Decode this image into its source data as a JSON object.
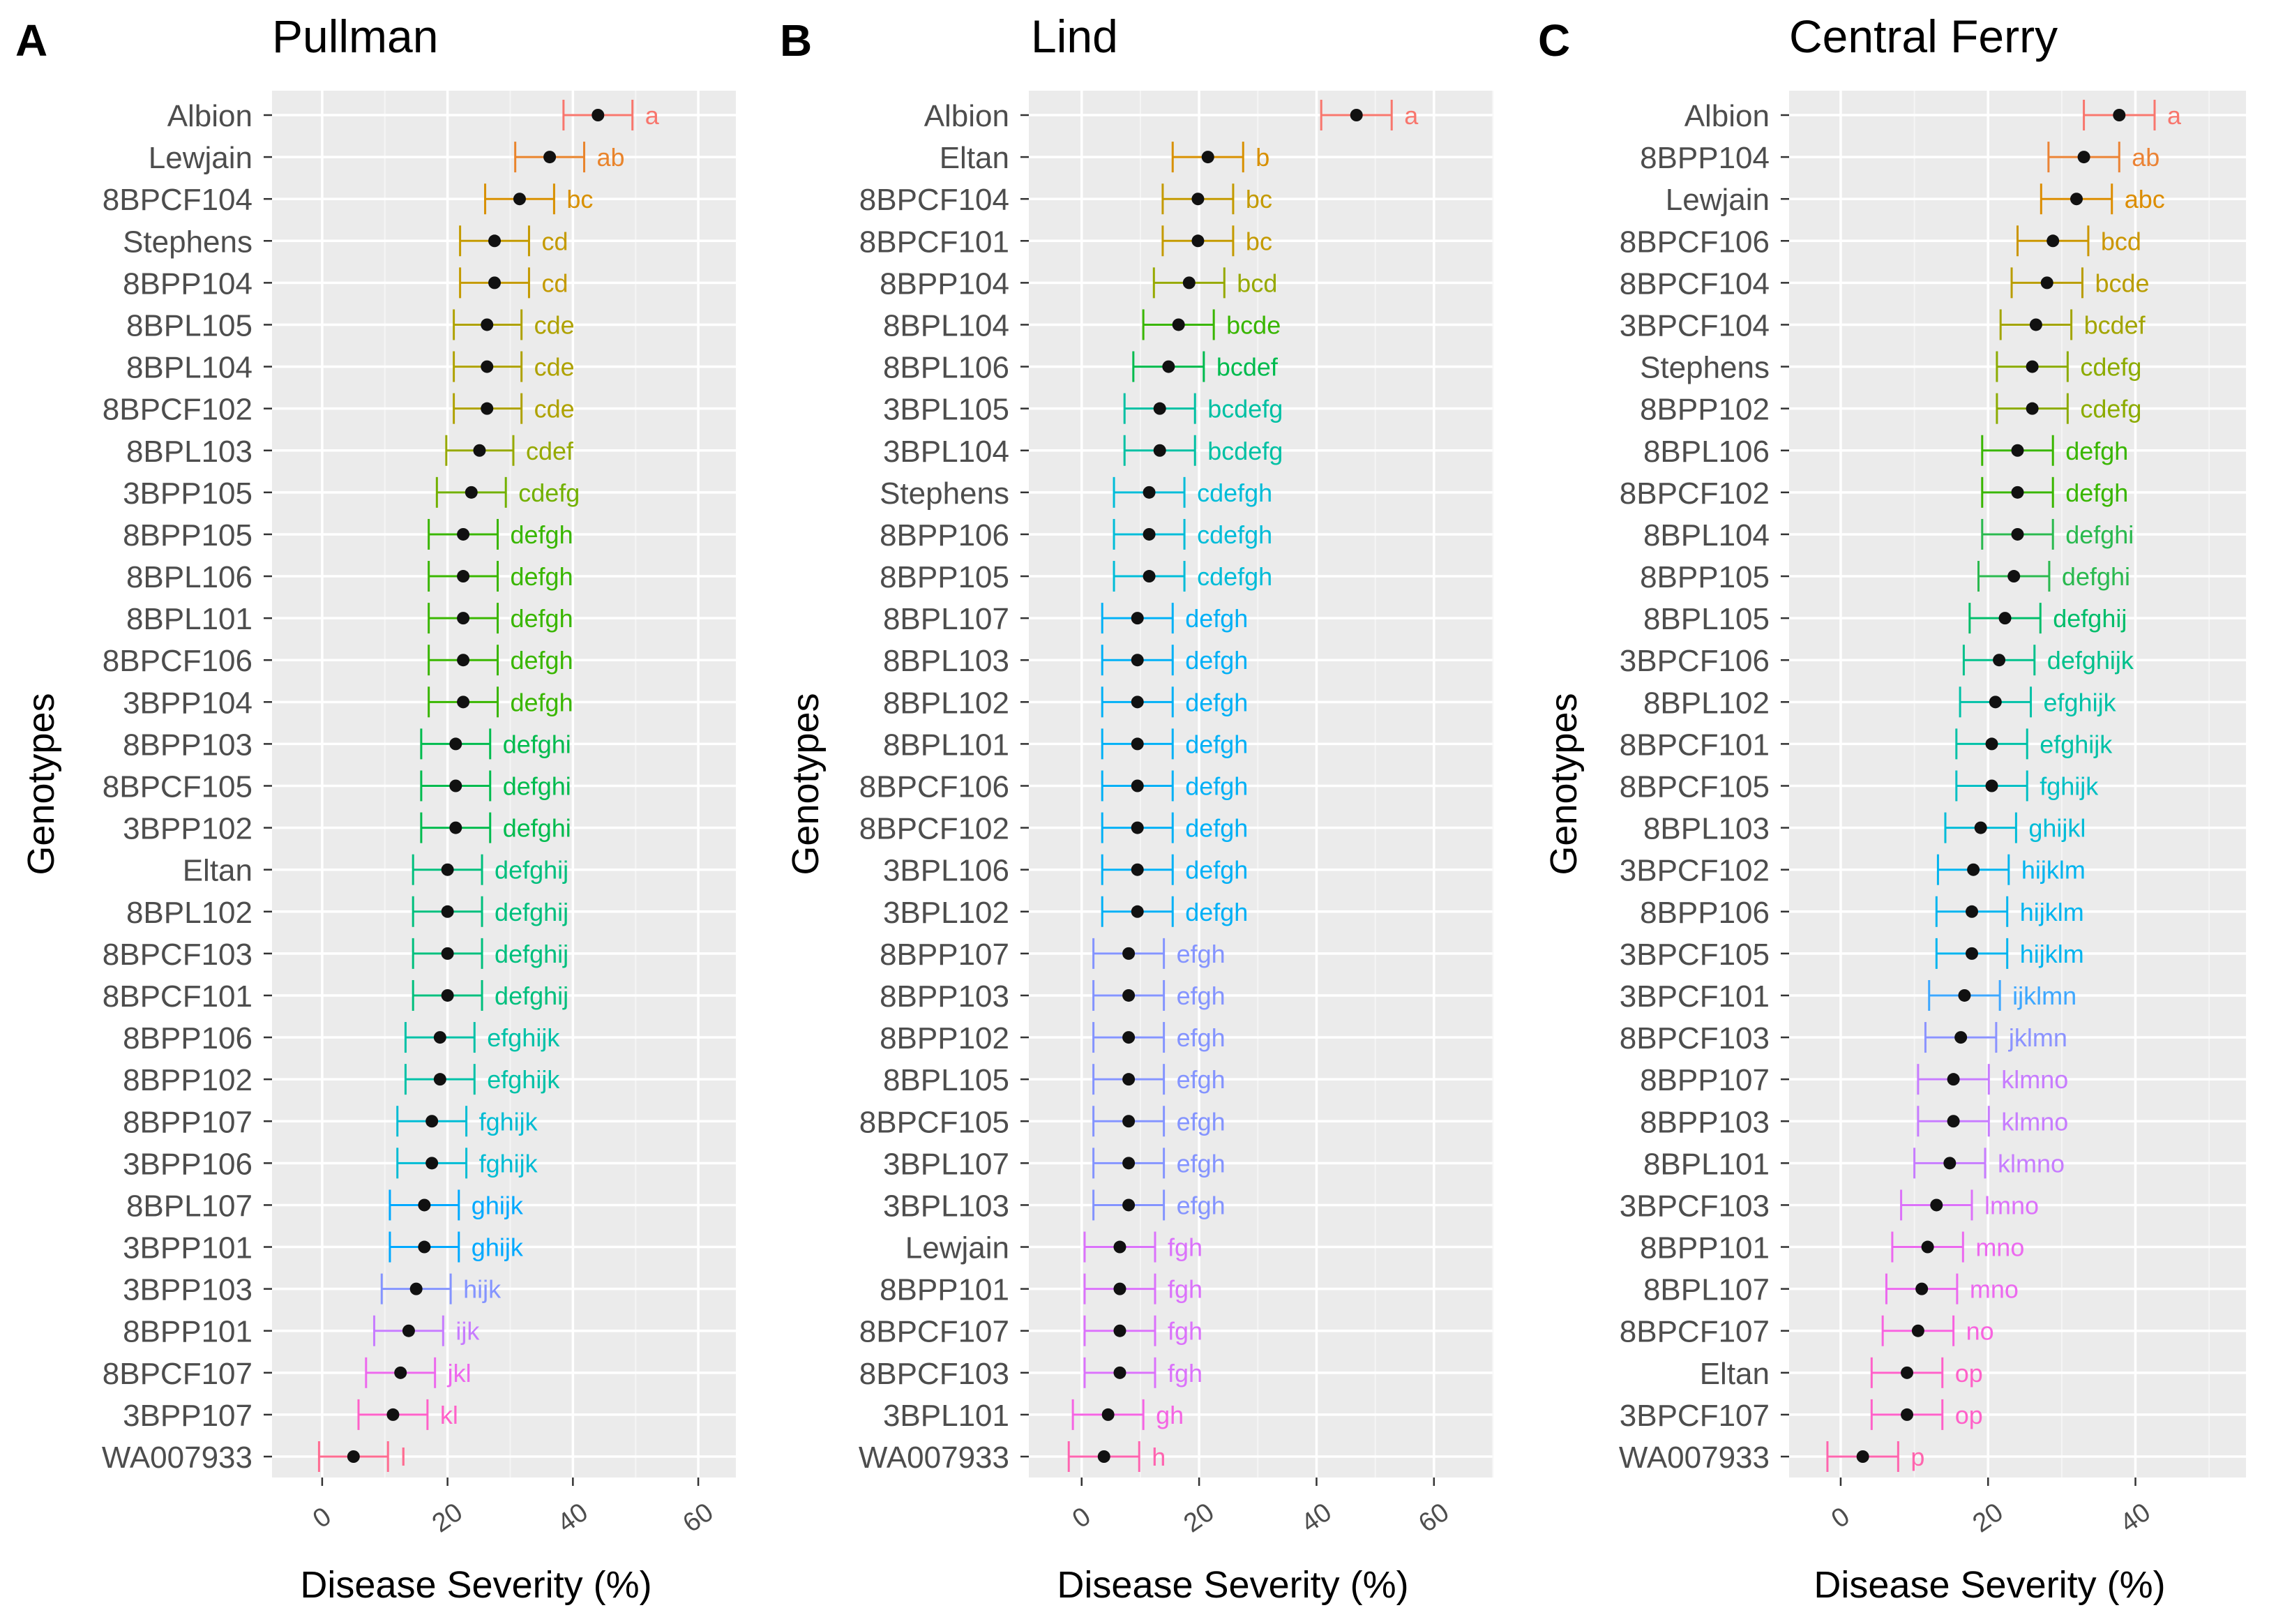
{
  "colors": {
    "a": "#F8766D",
    "ab": "#EE8133",
    "b": "#E58700",
    "bc": "#D89000",
    "abc": "#D39200",
    "bcd": "#BE9B00",
    "bcde": "#A6A300",
    "cd": "#B8A000",
    "cde": "#A3A500",
    "cdef": "#8CAB00",
    "bcdef": "#7CAE00",
    "cdefg": "#5BB300",
    "bcdefg": "#3BB800",
    "defgh": "#39B600",
    "defghi": "#2AB94F",
    "defghij": "#00BF7D",
    "defghijk": "#00C08B",
    "cdefgh": "#00BFC4",
    "defgh_lind": "#00B5E0",
    "efghi": "#00C1A3",
    "efghijk": "#00C0AF",
    "fghijk": "#00BCD8",
    "ghijk": "#35A2FF",
    "ghijkl": "#00BBDB",
    "hijk": "#9590FF",
    "hijklm": "#00B0F6",
    "ijklmn": "#25A8FF",
    "jklmn": "#6E9CFF",
    "klmno": "#C77CFF",
    "lmno": "#D773F5",
    "mno": "#E76BF3",
    "no": "#F265D6",
    "op": "#F563C7",
    "p": "#FF61C3",
    "ijk": "#B983FF",
    "jkl": "#E76BF3",
    "kl": "#F265D6",
    "l": "#FF61C3",
    "efgh": "#8592FF",
    "fgh": "#DB72FB",
    "gh": "#F066E0",
    "h": "#FF62BC"
  },
  "chart_data": [
    {
      "panel_label": "A",
      "title": "Pullman",
      "type": "scatter",
      "xlabel": "Disease Severity (%)",
      "ylabel": "Genotypes",
      "xlim": [
        -8,
        66
      ],
      "xticks": [
        "0",
        "20",
        "40",
        "60"
      ],
      "xtick_values": [
        0,
        20,
        40,
        60
      ],
      "points": [
        {
          "genotype": "Albion",
          "mean": 44,
          "lo": 38.5,
          "hi": 49.5,
          "group": "a",
          "color": "#F8766D"
        },
        {
          "genotype": "Lewjain",
          "mean": 36.3,
          "lo": 30.8,
          "hi": 41.8,
          "group": "ab",
          "color": "#E9842C"
        },
        {
          "genotype": "8BPCF104",
          "mean": 31.5,
          "lo": 26,
          "hi": 37,
          "group": "bc",
          "color": "#D89000"
        },
        {
          "genotype": "Stephens",
          "mean": 27.5,
          "lo": 22,
          "hi": 33,
          "group": "cd",
          "color": "#C49A00"
        },
        {
          "genotype": "8BPP104",
          "mean": 27.5,
          "lo": 22,
          "hi": 33,
          "group": "cd",
          "color": "#C49A00"
        },
        {
          "genotype": "8BPL105",
          "mean": 26.3,
          "lo": 21,
          "hi": 31.8,
          "group": "cde",
          "color": "#AFA200"
        },
        {
          "genotype": "8BPL104",
          "mean": 26.3,
          "lo": 21,
          "hi": 31.8,
          "group": "cde",
          "color": "#AFA200"
        },
        {
          "genotype": "8BPCF102",
          "mean": 26.3,
          "lo": 21,
          "hi": 31.8,
          "group": "cde",
          "color": "#AFA200"
        },
        {
          "genotype": "8BPL103",
          "mean": 25.1,
          "lo": 19.8,
          "hi": 30.5,
          "group": "cdef",
          "color": "#96A900"
        },
        {
          "genotype": "3BPP105",
          "mean": 23.8,
          "lo": 18.3,
          "hi": 29.3,
          "group": "cdefg",
          "color": "#72B000"
        },
        {
          "genotype": "8BPP105",
          "mean": 22.5,
          "lo": 17,
          "hi": 28,
          "group": "defgh",
          "color": "#39B600"
        },
        {
          "genotype": "8BPL106",
          "mean": 22.5,
          "lo": 17,
          "hi": 28,
          "group": "defgh",
          "color": "#39B600"
        },
        {
          "genotype": "8BPL101",
          "mean": 22.5,
          "lo": 17,
          "hi": 28,
          "group": "defgh",
          "color": "#39B600"
        },
        {
          "genotype": "8BPCF106",
          "mean": 22.5,
          "lo": 17,
          "hi": 28,
          "group": "defgh",
          "color": "#39B600"
        },
        {
          "genotype": "3BPP104",
          "mean": 22.5,
          "lo": 17,
          "hi": 28,
          "group": "defgh",
          "color": "#39B600"
        },
        {
          "genotype": "8BPP103",
          "mean": 21.3,
          "lo": 15.8,
          "hi": 26.8,
          "group": "defghi",
          "color": "#00BB4E"
        },
        {
          "genotype": "8BPCF105",
          "mean": 21.3,
          "lo": 15.8,
          "hi": 26.8,
          "group": "defghi",
          "color": "#00BB4E"
        },
        {
          "genotype": "3BPP102",
          "mean": 21.3,
          "lo": 15.8,
          "hi": 26.8,
          "group": "defghi",
          "color": "#00BB4E"
        },
        {
          "genotype": "Eltan",
          "mean": 20,
          "lo": 14.5,
          "hi": 25.5,
          "group": "defghij",
          "color": "#00BF7D"
        },
        {
          "genotype": "8BPL102",
          "mean": 20,
          "lo": 14.5,
          "hi": 25.5,
          "group": "defghij",
          "color": "#00BF7D"
        },
        {
          "genotype": "8BPCF103",
          "mean": 20,
          "lo": 14.5,
          "hi": 25.5,
          "group": "defghij",
          "color": "#00BF7D"
        },
        {
          "genotype": "8BPCF101",
          "mean": 20,
          "lo": 14.5,
          "hi": 25.5,
          "group": "defghij",
          "color": "#00BF7D"
        },
        {
          "genotype": "8BPP106",
          "mean": 18.8,
          "lo": 13.3,
          "hi": 24.3,
          "group": "efghijk",
          "color": "#00C1A7"
        },
        {
          "genotype": "8BPP102",
          "mean": 18.8,
          "lo": 13.3,
          "hi": 24.3,
          "group": "efghijk",
          "color": "#00C1A7"
        },
        {
          "genotype": "8BPP107",
          "mean": 17.5,
          "lo": 12,
          "hi": 23,
          "group": "fghijk",
          "color": "#00BCD4"
        },
        {
          "genotype": "3BPP106",
          "mean": 17.5,
          "lo": 12,
          "hi": 23,
          "group": "fghijk",
          "color": "#00BCD4"
        },
        {
          "genotype": "8BPL107",
          "mean": 16.3,
          "lo": 10.8,
          "hi": 21.8,
          "group": "ghijk",
          "color": "#00A9FF"
        },
        {
          "genotype": "3BPP101",
          "mean": 16.3,
          "lo": 10.8,
          "hi": 21.8,
          "group": "ghijk",
          "color": "#00A9FF"
        },
        {
          "genotype": "3BPP103",
          "mean": 15,
          "lo": 9.5,
          "hi": 20.5,
          "group": "hijk",
          "color": "#8494FF"
        },
        {
          "genotype": "8BPP101",
          "mean": 13.8,
          "lo": 8.3,
          "hi": 19.3,
          "group": "ijk",
          "color": "#C77CFF"
        },
        {
          "genotype": "8BPCF107",
          "mean": 12.5,
          "lo": 7,
          "hi": 18,
          "group": "jkl",
          "color": "#ED68ED"
        },
        {
          "genotype": "3BPP107",
          "mean": 11.3,
          "lo": 5.8,
          "hi": 16.8,
          "group": "kl",
          "color": "#FF61C9"
        },
        {
          "genotype": "WA007933",
          "mean": 5,
          "lo": -0.5,
          "hi": 10.5,
          "group": "l",
          "color": "#FF6C91"
        }
      ]
    },
    {
      "panel_label": "B",
      "title": "Lind",
      "type": "scatter",
      "xlabel": "Disease Severity (%)",
      "ylabel": "Genotypes",
      "xlim": [
        -9,
        70
      ],
      "xticks": [
        "0",
        "20",
        "40",
        "60"
      ],
      "xtick_values": [
        0,
        20,
        40,
        60
      ],
      "points": [
        {
          "genotype": "Albion",
          "mean": 46.8,
          "lo": 40.8,
          "hi": 52.8,
          "group": "a",
          "color": "#F8766D"
        },
        {
          "genotype": "Eltan",
          "mean": 21.5,
          "lo": 15.5,
          "hi": 27.5,
          "group": "b",
          "color": "#D89000"
        },
        {
          "genotype": "8BPCF104",
          "mean": 19.8,
          "lo": 13.8,
          "hi": 25.8,
          "group": "bc",
          "color": "#C49A00"
        },
        {
          "genotype": "8BPCF101",
          "mean": 19.8,
          "lo": 13.8,
          "hi": 25.8,
          "group": "bc",
          "color": "#C49A00"
        },
        {
          "genotype": "8BPP104",
          "mean": 18.3,
          "lo": 12.3,
          "hi": 24.3,
          "group": "bcd",
          "color": "#96A900"
        },
        {
          "genotype": "8BPL104",
          "mean": 16.5,
          "lo": 10.5,
          "hi": 22.5,
          "group": "bcde",
          "color": "#39B600"
        },
        {
          "genotype": "8BPL106",
          "mean": 14.8,
          "lo": 8.8,
          "hi": 20.8,
          "group": "bcdef",
          "color": "#00BB4E"
        },
        {
          "genotype": "3BPL105",
          "mean": 13.3,
          "lo": 7.3,
          "hi": 19.3,
          "group": "bcdefg",
          "color": "#00C0A3"
        },
        {
          "genotype": "3BPL104",
          "mean": 13.3,
          "lo": 7.3,
          "hi": 19.3,
          "group": "bcdefg",
          "color": "#00C0A3"
        },
        {
          "genotype": "Stephens",
          "mean": 11.5,
          "lo": 5.5,
          "hi": 17.5,
          "group": "cdefgh",
          "color": "#00BCD8"
        },
        {
          "genotype": "8BPP106",
          "mean": 11.5,
          "lo": 5.5,
          "hi": 17.5,
          "group": "cdefgh",
          "color": "#00BCD8"
        },
        {
          "genotype": "8BPP105",
          "mean": 11.5,
          "lo": 5.5,
          "hi": 17.5,
          "group": "cdefgh",
          "color": "#00BCD8"
        },
        {
          "genotype": "8BPL107",
          "mean": 9.5,
          "lo": 3.5,
          "hi": 15.5,
          "group": "defgh",
          "color": "#00B0F6"
        },
        {
          "genotype": "8BPL103",
          "mean": 9.5,
          "lo": 3.5,
          "hi": 15.5,
          "group": "defgh",
          "color": "#00B0F6"
        },
        {
          "genotype": "8BPL102",
          "mean": 9.5,
          "lo": 3.5,
          "hi": 15.5,
          "group": "defgh",
          "color": "#00B0F6"
        },
        {
          "genotype": "8BPL101",
          "mean": 9.5,
          "lo": 3.5,
          "hi": 15.5,
          "group": "defgh",
          "color": "#00B0F6"
        },
        {
          "genotype": "8BPCF106",
          "mean": 9.5,
          "lo": 3.5,
          "hi": 15.5,
          "group": "defgh",
          "color": "#00B0F6"
        },
        {
          "genotype": "8BPCF102",
          "mean": 9.5,
          "lo": 3.5,
          "hi": 15.5,
          "group": "defgh",
          "color": "#00B0F6"
        },
        {
          "genotype": "3BPL106",
          "mean": 9.5,
          "lo": 3.5,
          "hi": 15.5,
          "group": "defgh",
          "color": "#00B0F6"
        },
        {
          "genotype": "3BPL102",
          "mean": 9.5,
          "lo": 3.5,
          "hi": 15.5,
          "group": "defgh",
          "color": "#00B0F6"
        },
        {
          "genotype": "8BPP107",
          "mean": 8,
          "lo": 2,
          "hi": 14,
          "group": "efgh",
          "color": "#8494FF"
        },
        {
          "genotype": "8BPP103",
          "mean": 8,
          "lo": 2,
          "hi": 14,
          "group": "efgh",
          "color": "#8494FF"
        },
        {
          "genotype": "8BPP102",
          "mean": 8,
          "lo": 2,
          "hi": 14,
          "group": "efgh",
          "color": "#8494FF"
        },
        {
          "genotype": "8BPL105",
          "mean": 8,
          "lo": 2,
          "hi": 14,
          "group": "efgh",
          "color": "#8494FF"
        },
        {
          "genotype": "8BPCF105",
          "mean": 8,
          "lo": 2,
          "hi": 14,
          "group": "efgh",
          "color": "#8494FF"
        },
        {
          "genotype": "3BPL107",
          "mean": 8,
          "lo": 2,
          "hi": 14,
          "group": "efgh",
          "color": "#8494FF"
        },
        {
          "genotype": "3BPL103",
          "mean": 8,
          "lo": 2,
          "hi": 14,
          "group": "efgh",
          "color": "#8494FF"
        },
        {
          "genotype": "Lewjain",
          "mean": 6.5,
          "lo": 0.5,
          "hi": 12.5,
          "group": "fgh",
          "color": "#DB72FB"
        },
        {
          "genotype": "8BPP101",
          "mean": 6.5,
          "lo": 0.5,
          "hi": 12.5,
          "group": "fgh",
          "color": "#DB72FB"
        },
        {
          "genotype": "8BPCF107",
          "mean": 6.5,
          "lo": 0.5,
          "hi": 12.5,
          "group": "fgh",
          "color": "#DB72FB"
        },
        {
          "genotype": "8BPCF103",
          "mean": 6.5,
          "lo": 0.5,
          "hi": 12.5,
          "group": "fgh",
          "color": "#DB72FB"
        },
        {
          "genotype": "3BPL101",
          "mean": 4.5,
          "lo": -1.5,
          "hi": 10.5,
          "group": "gh",
          "color": "#F564E3"
        },
        {
          "genotype": "WA007933",
          "mean": 3.8,
          "lo": -2.2,
          "hi": 9.8,
          "group": "h",
          "color": "#FF64B0"
        }
      ]
    },
    {
      "panel_label": "C",
      "title": "Central Ferry",
      "type": "scatter",
      "xlabel": "Disease Severity (%)",
      "ylabel": "Genotypes",
      "xlim": [
        -7,
        55
      ],
      "xticks": [
        "0",
        "20",
        "40"
      ],
      "xtick_values": [
        0,
        20,
        40
      ],
      "points": [
        {
          "genotype": "Albion",
          "mean": 37.8,
          "lo": 33,
          "hi": 42.6,
          "group": "a",
          "color": "#F8766D"
        },
        {
          "genotype": "8BPP104",
          "mean": 33,
          "lo": 28.2,
          "hi": 37.8,
          "group": "ab",
          "color": "#EB8335"
        },
        {
          "genotype": "Lewjain",
          "mean": 32,
          "lo": 27.2,
          "hi": 36.8,
          "group": "abc",
          "color": "#DC8D00"
        },
        {
          "genotype": "8BPCF106",
          "mean": 28.8,
          "lo": 24,
          "hi": 33.6,
          "group": "bcd",
          "color": "#CB9600"
        },
        {
          "genotype": "8BPCF104",
          "mean": 28,
          "lo": 23.2,
          "hi": 32.8,
          "group": "bcde",
          "color": "#B99D00"
        },
        {
          "genotype": "3BPCF104",
          "mean": 26.5,
          "lo": 21.7,
          "hi": 31.3,
          "group": "bcdef",
          "color": "#A3A500"
        },
        {
          "genotype": "Stephens",
          "mean": 26,
          "lo": 21.2,
          "hi": 30.8,
          "group": "cdefg",
          "color": "#8CAB00"
        },
        {
          "genotype": "8BPP102",
          "mean": 26,
          "lo": 21.2,
          "hi": 30.8,
          "group": "cdefg",
          "color": "#8CAB00"
        },
        {
          "genotype": "8BPL106",
          "mean": 24,
          "lo": 19.2,
          "hi": 28.8,
          "group": "defgh",
          "color": "#39B600"
        },
        {
          "genotype": "8BPCF102",
          "mean": 24,
          "lo": 19.2,
          "hi": 28.8,
          "group": "defgh",
          "color": "#39B600"
        },
        {
          "genotype": "8BPL104",
          "mean": 24,
          "lo": 19.2,
          "hi": 28.8,
          "group": "defghi",
          "color": "#2AB94F"
        },
        {
          "genotype": "8BPP105",
          "mean": 23.5,
          "lo": 18.7,
          "hi": 28.3,
          "group": "defghi",
          "color": "#2AB94F"
        },
        {
          "genotype": "8BPL105",
          "mean": 22.3,
          "lo": 17.5,
          "hi": 27.1,
          "group": "defghij",
          "color": "#00BD6A"
        },
        {
          "genotype": "3BPCF106",
          "mean": 21.5,
          "lo": 16.7,
          "hi": 26.3,
          "group": "defghijk",
          "color": "#00C08B"
        },
        {
          "genotype": "8BPL102",
          "mean": 21,
          "lo": 16.2,
          "hi": 25.8,
          "group": "efghijk",
          "color": "#00C1A7"
        },
        {
          "genotype": "8BPCF101",
          "mean": 20.5,
          "lo": 15.7,
          "hi": 25.3,
          "group": "efghijk",
          "color": "#00C1A7"
        },
        {
          "genotype": "8BPCF105",
          "mean": 20.5,
          "lo": 15.7,
          "hi": 25.3,
          "group": "fghijk",
          "color": "#00BFC4"
        },
        {
          "genotype": "8BPL103",
          "mean": 19,
          "lo": 14.2,
          "hi": 23.8,
          "group": "ghijkl",
          "color": "#00BCD8"
        },
        {
          "genotype": "3BPCF102",
          "mean": 18,
          "lo": 13.2,
          "hi": 22.8,
          "group": "hijklm",
          "color": "#00B4EF"
        },
        {
          "genotype": "8BPP106",
          "mean": 17.8,
          "lo": 13,
          "hi": 22.6,
          "group": "hijklm",
          "color": "#00B4EF"
        },
        {
          "genotype": "3BPCF105",
          "mean": 17.8,
          "lo": 13,
          "hi": 22.6,
          "group": "hijklm",
          "color": "#00B4EF"
        },
        {
          "genotype": "3BPCF101",
          "mean": 16.8,
          "lo": 12,
          "hi": 21.6,
          "group": "ijklmn",
          "color": "#3DA7FF"
        },
        {
          "genotype": "8BPCF103",
          "mean": 16.3,
          "lo": 11.5,
          "hi": 21.1,
          "group": "jklmn",
          "color": "#8B93FF"
        },
        {
          "genotype": "8BPP107",
          "mean": 15.3,
          "lo": 10.5,
          "hi": 20.1,
          "group": "klmno",
          "color": "#C77CFF"
        },
        {
          "genotype": "8BPP103",
          "mean": 15.3,
          "lo": 10.5,
          "hi": 20.1,
          "group": "klmno",
          "color": "#C77CFF"
        },
        {
          "genotype": "8BPL101",
          "mean": 14.8,
          "lo": 10,
          "hi": 19.6,
          "group": "klmno",
          "color": "#C77CFF"
        },
        {
          "genotype": "3BPCF103",
          "mean": 13,
          "lo": 8.2,
          "hi": 17.8,
          "group": "lmno",
          "color": "#DC71FA"
        },
        {
          "genotype": "8BPP101",
          "mean": 11.8,
          "lo": 7,
          "hi": 16.6,
          "group": "mno",
          "color": "#EC69EF"
        },
        {
          "genotype": "8BPL107",
          "mean": 11,
          "lo": 6.2,
          "hi": 15.8,
          "group": "mno",
          "color": "#EC69EF"
        },
        {
          "genotype": "8BPCF107",
          "mean": 10.5,
          "lo": 5.7,
          "hi": 15.3,
          "group": "no",
          "color": "#F863DF"
        },
        {
          "genotype": "Eltan",
          "mean": 9,
          "lo": 4.2,
          "hi": 13.8,
          "group": "op",
          "color": "#FF61C9"
        },
        {
          "genotype": "3BPCF107",
          "mean": 9,
          "lo": 4.2,
          "hi": 13.8,
          "group": "op",
          "color": "#FF61C9"
        },
        {
          "genotype": "WA007933",
          "mean": 3,
          "lo": -1.8,
          "hi": 7.8,
          "group": "p",
          "color": "#FF65AE"
        }
      ]
    }
  ]
}
